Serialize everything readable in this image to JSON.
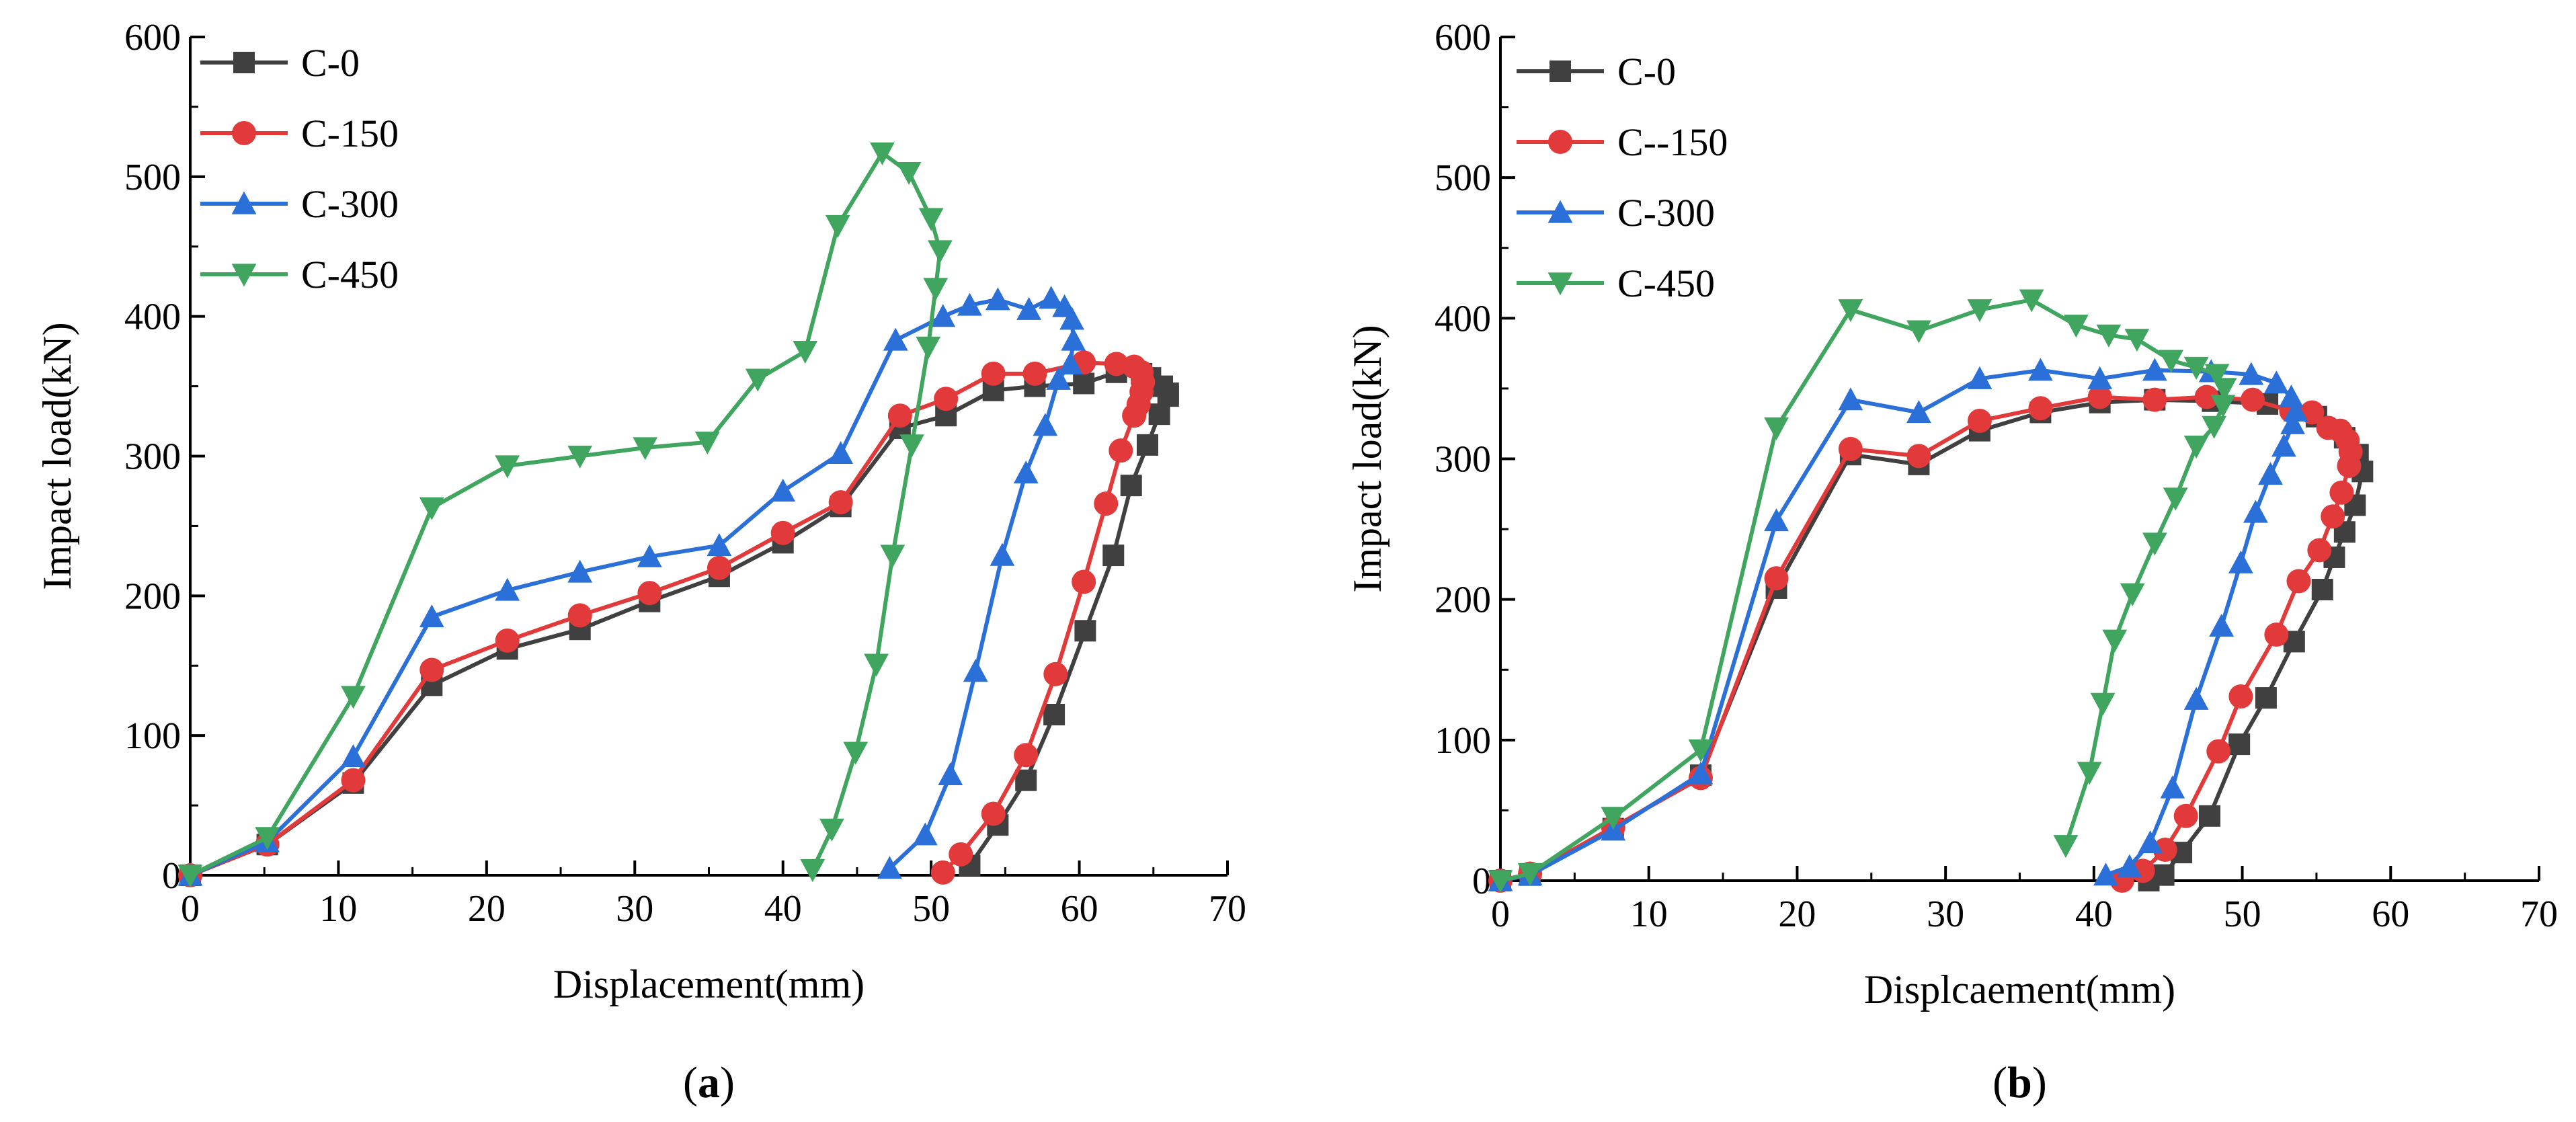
{
  "chart_data": [
    {
      "type": "line",
      "caption_open": "(",
      "caption_letter": "a",
      "caption_close": ")",
      "xlabel": "Displacement(mm)",
      "ylabel": "Impact load(kN)",
      "xlim": [
        0,
        70
      ],
      "ylim": [
        0,
        600
      ],
      "xticks": [
        "0",
        "10",
        "20",
        "30",
        "40",
        "50",
        "60",
        "70"
      ],
      "yticks": [
        "0",
        "100",
        "200",
        "300",
        "400",
        "500",
        "600"
      ],
      "grid": false,
      "legend_position": "top-left",
      "series": [
        {
          "name": "C-0",
          "color": "#404040",
          "marker": "square",
          "x": [
            0,
            5.2,
            11,
            16.3,
            21.4,
            26.3,
            31,
            35.7,
            40,
            43.9,
            47.9,
            51,
            54.2,
            57,
            60.3,
            62.5,
            64.2,
            64.8,
            65.6,
            66,
            66,
            65.4,
            64.6,
            63.5,
            62.3,
            60.4,
            58.3,
            56.4,
            54.5,
            52.6
          ],
          "y": [
            0,
            22,
            66,
            136,
            162,
            176,
            196,
            214,
            238,
            264,
            320,
            329,
            347,
            350,
            352,
            360,
            359,
            356,
            350,
            345,
            343,
            330,
            308,
            279,
            229,
            175,
            115,
            68,
            36,
            7
          ]
        },
        {
          "name": "C-150",
          "color": "#e23a3a",
          "marker": "circle",
          "x": [
            0,
            5.2,
            11,
            16.3,
            21.4,
            26.3,
            31,
            35.7,
            40,
            43.9,
            47.9,
            51,
            54.2,
            57,
            60.3,
            62.5,
            63.7,
            64.2,
            64.3,
            64.2,
            64,
            63.7,
            62.8,
            61.8,
            60.3,
            58.4,
            56.4,
            54.2,
            52,
            50.8
          ],
          "y": [
            0,
            22,
            68,
            147,
            168,
            186,
            202,
            220,
            245,
            267,
            329,
            341,
            359,
            359,
            367,
            366,
            364,
            360,
            353,
            346,
            337,
            329,
            304,
            266,
            210,
            144,
            86,
            44,
            15,
            2
          ]
        },
        {
          "name": "C-300",
          "color": "#2b70d8",
          "marker": "triangle-up",
          "x": [
            0,
            5.2,
            11,
            16.3,
            21.4,
            26.3,
            31,
            35.7,
            40,
            43.9,
            47.6,
            50.8,
            52.6,
            54.5,
            56.6,
            58.1,
            59,
            59.5,
            59.6,
            59.4,
            58.6,
            57.7,
            56.4,
            54.8,
            53,
            51.3,
            49.6,
            47.2
          ],
          "y": [
            0,
            24,
            85,
            185,
            204,
            217,
            228,
            236,
            275,
            302,
            383,
            400,
            408,
            412,
            405,
            413,
            407,
            398,
            383,
            366,
            355,
            322,
            288,
            229,
            146,
            72,
            29,
            5
          ]
        },
        {
          "name": "C-450",
          "color": "#3fa55f",
          "marker": "triangle-down",
          "x": [
            0,
            5.2,
            11,
            16.3,
            21.4,
            26.3,
            30.7,
            34.9,
            38.3,
            41.5,
            43.7,
            46.7,
            48.5,
            50,
            50.6,
            50.3,
            49.8,
            48.7,
            47.4,
            46.3,
            44.9,
            43.3,
            42
          ],
          "y": [
            0,
            27,
            128,
            263,
            293,
            300,
            306,
            310,
            355,
            375,
            465,
            517,
            503,
            470,
            447,
            420,
            378,
            308,
            229,
            151,
            88,
            33,
            4
          ]
        }
      ]
    },
    {
      "type": "line",
      "caption_open": "(",
      "caption_letter": "b",
      "caption_close": ")",
      "xlabel": "Displcaement(mm)",
      "ylabel": "Impact load(kN)",
      "xlim": [
        0,
        70
      ],
      "ylim": [
        0,
        600
      ],
      "xticks": [
        "0",
        "10",
        "20",
        "30",
        "40",
        "50",
        "60",
        "70"
      ],
      "yticks": [
        "0",
        "100",
        "200",
        "300",
        "400",
        "500",
        "600"
      ],
      "grid": false,
      "legend_position": "top-left",
      "series": [
        {
          "name": "C-0",
          "color": "#404040",
          "marker": "square",
          "x": [
            0,
            2,
            7.6,
            13.5,
            18.6,
            23.6,
            28.2,
            32.3,
            36.4,
            40.4,
            44.1,
            48,
            51.7,
            55,
            56.9,
            57.8,
            58.1,
            57.6,
            56.9,
            56.2,
            55.4,
            53.5,
            51.6,
            49.8,
            47.8,
            45.9,
            44.7,
            43.7
          ],
          "y": [
            0,
            4,
            37,
            75,
            208,
            303,
            296,
            320,
            333,
            340,
            342,
            341,
            339,
            330,
            315,
            303,
            291,
            267,
            248,
            230,
            207,
            170,
            130,
            97,
            46,
            20,
            4,
            0
          ]
        },
        {
          "name": "C--150",
          "color": "#e23a3a",
          "marker": "circle",
          "x": [
            0,
            2,
            7.6,
            13.5,
            18.6,
            23.6,
            28.2,
            32.3,
            36.4,
            40.4,
            44.1,
            47.6,
            50.7,
            53.3,
            54.7,
            55.8,
            56.6,
            57.1,
            57.3,
            57.2,
            56.7,
            56.1,
            55.2,
            53.8,
            52.3,
            49.9,
            48.4,
            46.2,
            44.8,
            43.3,
            41.9
          ],
          "y": [
            0,
            5,
            38,
            73,
            215,
            307,
            302,
            327,
            336,
            344,
            342,
            344,
            342,
            334,
            333,
            322,
            320,
            313,
            305,
            295,
            276,
            259,
            235,
            213,
            175,
            131,
            92,
            46,
            22,
            7,
            0
          ]
        },
        {
          "name": "C-300",
          "color": "#2b70d8",
          "marker": "triangle-up",
          "x": [
            0,
            2,
            7.6,
            13.5,
            18.6,
            23.6,
            28.2,
            32.3,
            36.4,
            40.4,
            44.1,
            47.9,
            50.6,
            52.3,
            53.3,
            53.6,
            53.4,
            52.8,
            51.9,
            50.9,
            49.9,
            48.6,
            46.9,
            45.3,
            43.8,
            42.4,
            40.8
          ],
          "y": [
            0,
            4,
            36,
            76,
            256,
            342,
            333,
            357,
            363,
            357,
            363,
            362,
            360,
            354,
            344,
            334,
            325,
            309,
            289,
            262,
            226,
            181,
            129,
            66,
            27,
            10,
            4
          ]
        },
        {
          "name": "C-450",
          "color": "#3fa55f",
          "marker": "triangle-down",
          "x": [
            0,
            2,
            7.6,
            13.5,
            18.6,
            23.6,
            28.2,
            32.3,
            35.8,
            38.8,
            41,
            42.9,
            45.2,
            46.9,
            48.3,
            48.8,
            48.7,
            48.1,
            46.9,
            45.5,
            44.1,
            42.6,
            41.4,
            40.6,
            39.7,
            38.1
          ],
          "y": [
            0,
            5,
            45,
            93,
            322,
            406,
            391,
            406,
            413,
            395,
            388,
            385,
            370,
            365,
            360,
            350,
            338,
            323,
            309,
            272,
            240,
            204,
            171,
            126,
            77,
            25
          ]
        }
      ]
    }
  ]
}
